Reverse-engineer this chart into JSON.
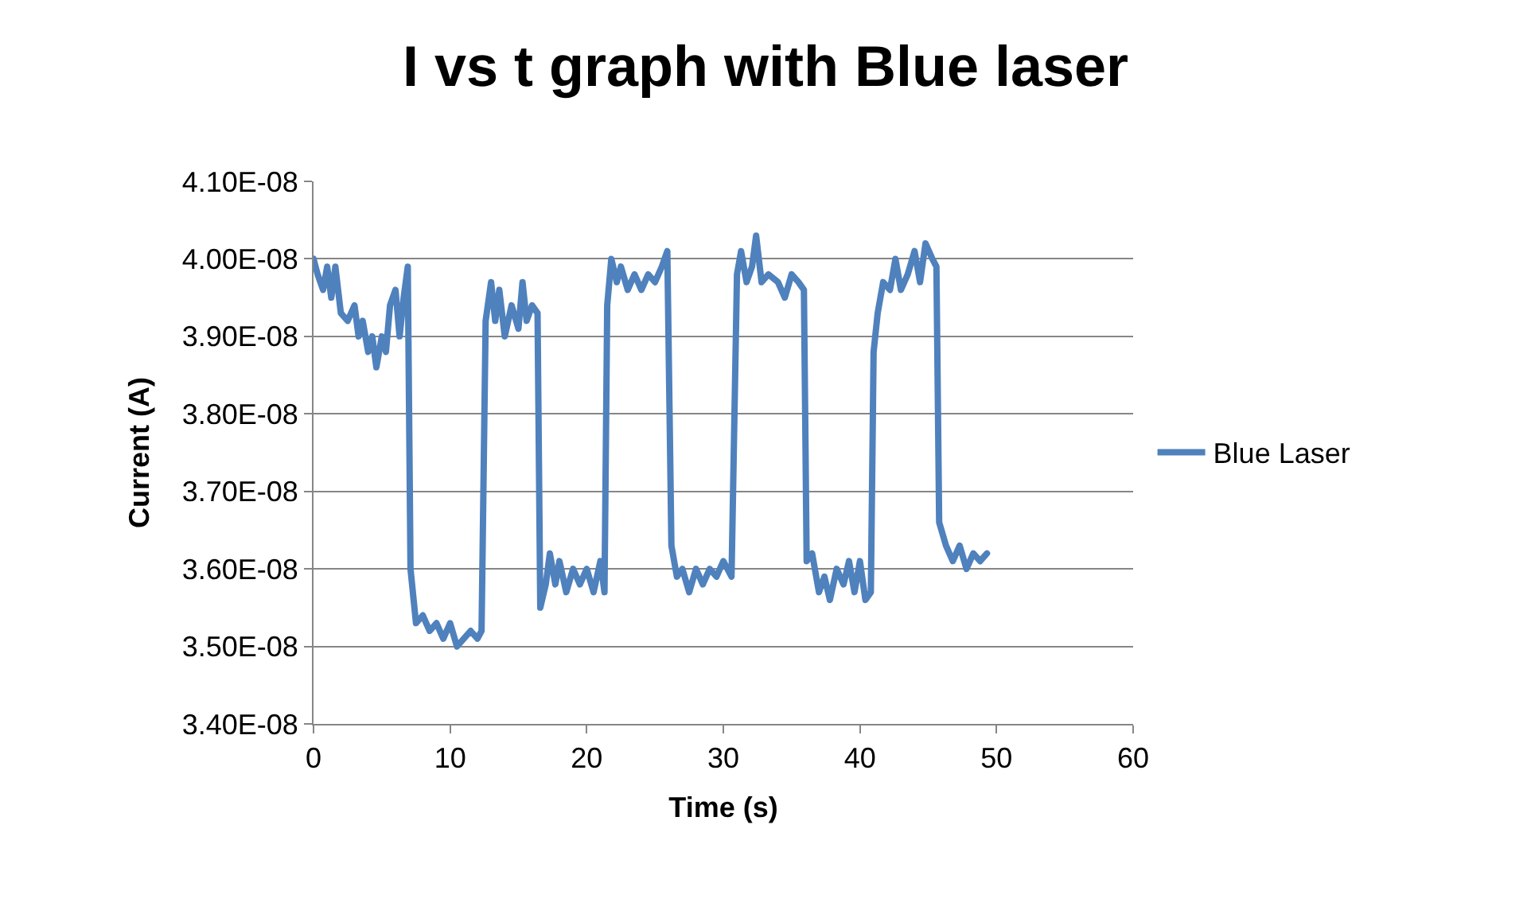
{
  "chart_data": {
    "type": "line",
    "title": "I vs t graph with Blue laser",
    "xlabel": "Time (s)",
    "ylabel": "Current (A)",
    "x": [
      0,
      0.3,
      0.7,
      1,
      1.3,
      1.6,
      2,
      2.5,
      3,
      3.3,
      3.6,
      4,
      4.3,
      4.6,
      5,
      5.3,
      5.6,
      6,
      6.3,
      6.6,
      6.9,
      7.1,
      7.5,
      8,
      8.5,
      9,
      9.5,
      10,
      10.5,
      11,
      11.5,
      12,
      12.3,
      12.6,
      13,
      13.3,
      13.6,
      14,
      14.5,
      15,
      15.3,
      15.6,
      16,
      16.4,
      16.6,
      17,
      17.3,
      17.7,
      18,
      18.5,
      19,
      19.5,
      20,
      20.5,
      21,
      21.3,
      21.5,
      21.8,
      22.2,
      22.5,
      23,
      23.5,
      24,
      24.5,
      25,
      25.5,
      25.9,
      26.2,
      26.6,
      27,
      27.5,
      28,
      28.5,
      29,
      29.5,
      30,
      30.6,
      31,
      31.3,
      31.7,
      32.1,
      32.4,
      32.8,
      33.3,
      34,
      34.5,
      35,
      35.5,
      35.9,
      36.1,
      36.5,
      37,
      37.4,
      37.8,
      38.3,
      38.8,
      39.2,
      39.6,
      40,
      40.4,
      40.8,
      41,
      41.3,
      41.7,
      42.2,
      42.6,
      43,
      43.5,
      44,
      44.4,
      44.8,
      45.3,
      45.6,
      45.8,
      46.3,
      46.8,
      47.3,
      47.8,
      48.3,
      48.8,
      49.3
    ],
    "series": [
      {
        "name": "Blue Laser",
        "color": "#4f81bd",
        "values": [
          4e-08,
          3.98e-08,
          3.96e-08,
          3.99e-08,
          3.95e-08,
          3.99e-08,
          3.93e-08,
          3.92e-08,
          3.94e-08,
          3.9e-08,
          3.92e-08,
          3.88e-08,
          3.9e-08,
          3.86e-08,
          3.9e-08,
          3.88e-08,
          3.94e-08,
          3.96e-08,
          3.9e-08,
          3.95e-08,
          3.99e-08,
          3.6e-08,
          3.53e-08,
          3.54e-08,
          3.52e-08,
          3.53e-08,
          3.51e-08,
          3.53e-08,
          3.5e-08,
          3.51e-08,
          3.52e-08,
          3.51e-08,
          3.52e-08,
          3.92e-08,
          3.97e-08,
          3.92e-08,
          3.96e-08,
          3.9e-08,
          3.94e-08,
          3.91e-08,
          3.97e-08,
          3.92e-08,
          3.94e-08,
          3.93e-08,
          3.55e-08,
          3.58e-08,
          3.62e-08,
          3.58e-08,
          3.61e-08,
          3.57e-08,
          3.6e-08,
          3.58e-08,
          3.6e-08,
          3.57e-08,
          3.61e-08,
          3.57e-08,
          3.94e-08,
          4e-08,
          3.97e-08,
          3.99e-08,
          3.96e-08,
          3.98e-08,
          3.96e-08,
          3.98e-08,
          3.97e-08,
          3.99e-08,
          4.01e-08,
          3.63e-08,
          3.59e-08,
          3.6e-08,
          3.57e-08,
          3.6e-08,
          3.58e-08,
          3.6e-08,
          3.59e-08,
          3.61e-08,
          3.59e-08,
          3.98e-08,
          4.01e-08,
          3.97e-08,
          3.99e-08,
          4.03e-08,
          3.97e-08,
          3.98e-08,
          3.97e-08,
          3.95e-08,
          3.98e-08,
          3.97e-08,
          3.96e-08,
          3.61e-08,
          3.62e-08,
          3.57e-08,
          3.59e-08,
          3.56e-08,
          3.6e-08,
          3.58e-08,
          3.61e-08,
          3.57e-08,
          3.61e-08,
          3.56e-08,
          3.57e-08,
          3.88e-08,
          3.93e-08,
          3.97e-08,
          3.96e-08,
          4e-08,
          3.96e-08,
          3.98e-08,
          4.01e-08,
          3.97e-08,
          4.02e-08,
          4e-08,
          3.99e-08,
          3.66e-08,
          3.63e-08,
          3.61e-08,
          3.63e-08,
          3.6e-08,
          3.62e-08,
          3.61e-08,
          3.62e-08
        ]
      }
    ],
    "xlim": [
      0,
      60
    ],
    "xticks": [
      0,
      10,
      20,
      30,
      40,
      50,
      60
    ],
    "ylim": [
      3.4e-08,
      4.1e-08
    ],
    "yticks": [
      {
        "value": 3.4e-08,
        "label": "3.40E-08"
      },
      {
        "value": 3.5e-08,
        "label": "3.50E-08"
      },
      {
        "value": 3.6e-08,
        "label": "3.60E-08"
      },
      {
        "value": 3.7e-08,
        "label": "3.70E-08"
      },
      {
        "value": 3.8e-08,
        "label": "3.80E-08"
      },
      {
        "value": 3.9e-08,
        "label": "3.90E-08"
      },
      {
        "value": 4e-08,
        "label": "4.00E-08"
      },
      {
        "value": 4.1e-08,
        "label": "4.10E-08"
      }
    ],
    "grid": "y",
    "legend": "right",
    "marker": "none",
    "line_style": "solid"
  }
}
